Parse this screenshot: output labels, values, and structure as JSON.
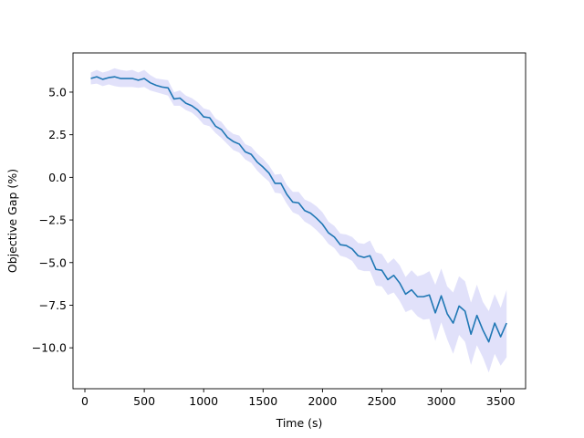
{
  "chart_data": {
    "type": "line",
    "title": "",
    "xlabel": "Time (s)",
    "ylabel": "Objective Gap (%)",
    "xlim": [
      -100,
      3710
    ],
    "ylim": [
      -12.4,
      7.3
    ],
    "xticks": [
      0,
      500,
      1000,
      1500,
      2000,
      2500,
      3000,
      3500
    ],
    "xtick_labels": [
      "0",
      "500",
      "1000",
      "1500",
      "2000",
      "2500",
      "3000",
      "3500"
    ],
    "yticks": [
      5.0,
      2.5,
      0.0,
      -2.5,
      -5.0,
      -7.5,
      -10.0
    ],
    "ytick_labels": [
      "5.0",
      "2.5",
      "0.0",
      "−2.5",
      "−5.0",
      "−7.5",
      "−10.0"
    ],
    "grid": false,
    "colors": {
      "line": "#1f77b4",
      "band": "#c8c8f5",
      "axes": "#000000"
    },
    "series": [
      {
        "x": [
          50,
          100,
          150,
          200,
          250,
          300,
          350,
          400,
          450,
          500,
          550,
          600,
          650,
          700,
          750,
          800,
          850,
          900,
          950,
          1000,
          1050,
          1100,
          1150,
          1200,
          1250,
          1300,
          1350,
          1400,
          1450,
          1500,
          1550,
          1600,
          1650,
          1700,
          1750,
          1800,
          1850,
          1900,
          1950,
          2000,
          2050,
          2100,
          2150,
          2200,
          2250,
          2300,
          2350,
          2400,
          2450,
          2500,
          2550,
          2600,
          2650,
          2700,
          2750,
          2800,
          2850,
          2900,
          2950,
          3000,
          3050,
          3100,
          3150,
          3200,
          3250,
          3300,
          3350,
          3400,
          3450,
          3500,
          3550
        ],
        "y": [
          5.8,
          5.9,
          5.75,
          5.85,
          5.9,
          5.8,
          5.8,
          5.8,
          5.7,
          5.8,
          5.55,
          5.4,
          5.3,
          5.25,
          4.6,
          4.65,
          4.35,
          4.2,
          3.95,
          3.55,
          3.5,
          3.0,
          2.8,
          2.35,
          2.1,
          1.95,
          1.5,
          1.35,
          0.9,
          0.6,
          0.25,
          -0.35,
          -0.35,
          -1.0,
          -1.45,
          -1.5,
          -1.95,
          -2.1,
          -2.4,
          -2.75,
          -3.25,
          -3.5,
          -3.95,
          -4.0,
          -4.2,
          -4.6,
          -4.7,
          -4.6,
          -5.4,
          -5.45,
          -6.0,
          -5.75,
          -6.2,
          -6.85,
          -6.6,
          -7.0,
          -7.0,
          -6.9,
          -7.95,
          -6.95,
          -8.0,
          -8.55,
          -7.55,
          -7.85,
          -9.2,
          -8.1,
          -8.95,
          -9.65,
          -8.55,
          -9.35,
          -8.55
        ],
        "lower": [
          5.45,
          5.5,
          5.35,
          5.45,
          5.35,
          5.3,
          5.3,
          5.3,
          5.25,
          5.3,
          5.1,
          5.0,
          4.9,
          4.8,
          4.2,
          4.2,
          3.95,
          3.8,
          3.5,
          3.1,
          3.0,
          2.6,
          2.3,
          1.95,
          1.6,
          1.45,
          1.05,
          0.85,
          0.4,
          0.05,
          -0.25,
          -0.9,
          -0.95,
          -1.55,
          -2.05,
          -2.2,
          -2.6,
          -2.8,
          -3.1,
          -3.45,
          -3.9,
          -4.15,
          -4.6,
          -4.7,
          -4.9,
          -5.4,
          -5.5,
          -5.5,
          -6.35,
          -6.4,
          -6.9,
          -6.75,
          -7.25,
          -7.9,
          -7.75,
          -8.15,
          -8.35,
          -8.3,
          -9.6,
          -8.5,
          -9.5,
          -10.35,
          -9.25,
          -9.65,
          -11.0,
          -9.85,
          -10.55,
          -11.45,
          -10.35,
          -11.05,
          -10.55
        ],
        "upper": [
          6.15,
          6.3,
          6.15,
          6.25,
          6.4,
          6.3,
          6.25,
          6.3,
          6.15,
          6.3,
          6.0,
          5.8,
          5.75,
          5.7,
          5.0,
          5.1,
          4.8,
          4.65,
          4.4,
          4.05,
          3.95,
          3.45,
          3.25,
          2.8,
          2.55,
          2.45,
          1.95,
          1.8,
          1.4,
          1.1,
          0.7,
          0.15,
          0.2,
          -0.45,
          -0.85,
          -0.85,
          -1.3,
          -1.45,
          -1.7,
          -2.05,
          -2.6,
          -2.85,
          -3.3,
          -3.35,
          -3.5,
          -3.85,
          -3.9,
          -3.7,
          -4.4,
          -4.5,
          -5.05,
          -4.75,
          -5.15,
          -5.85,
          -5.45,
          -5.8,
          -5.7,
          -5.5,
          -6.3,
          -5.35,
          -6.4,
          -6.75,
          -5.8,
          -6.1,
          -7.35,
          -6.3,
          -7.3,
          -7.85,
          -6.85,
          -7.65,
          -6.6
        ]
      }
    ]
  }
}
